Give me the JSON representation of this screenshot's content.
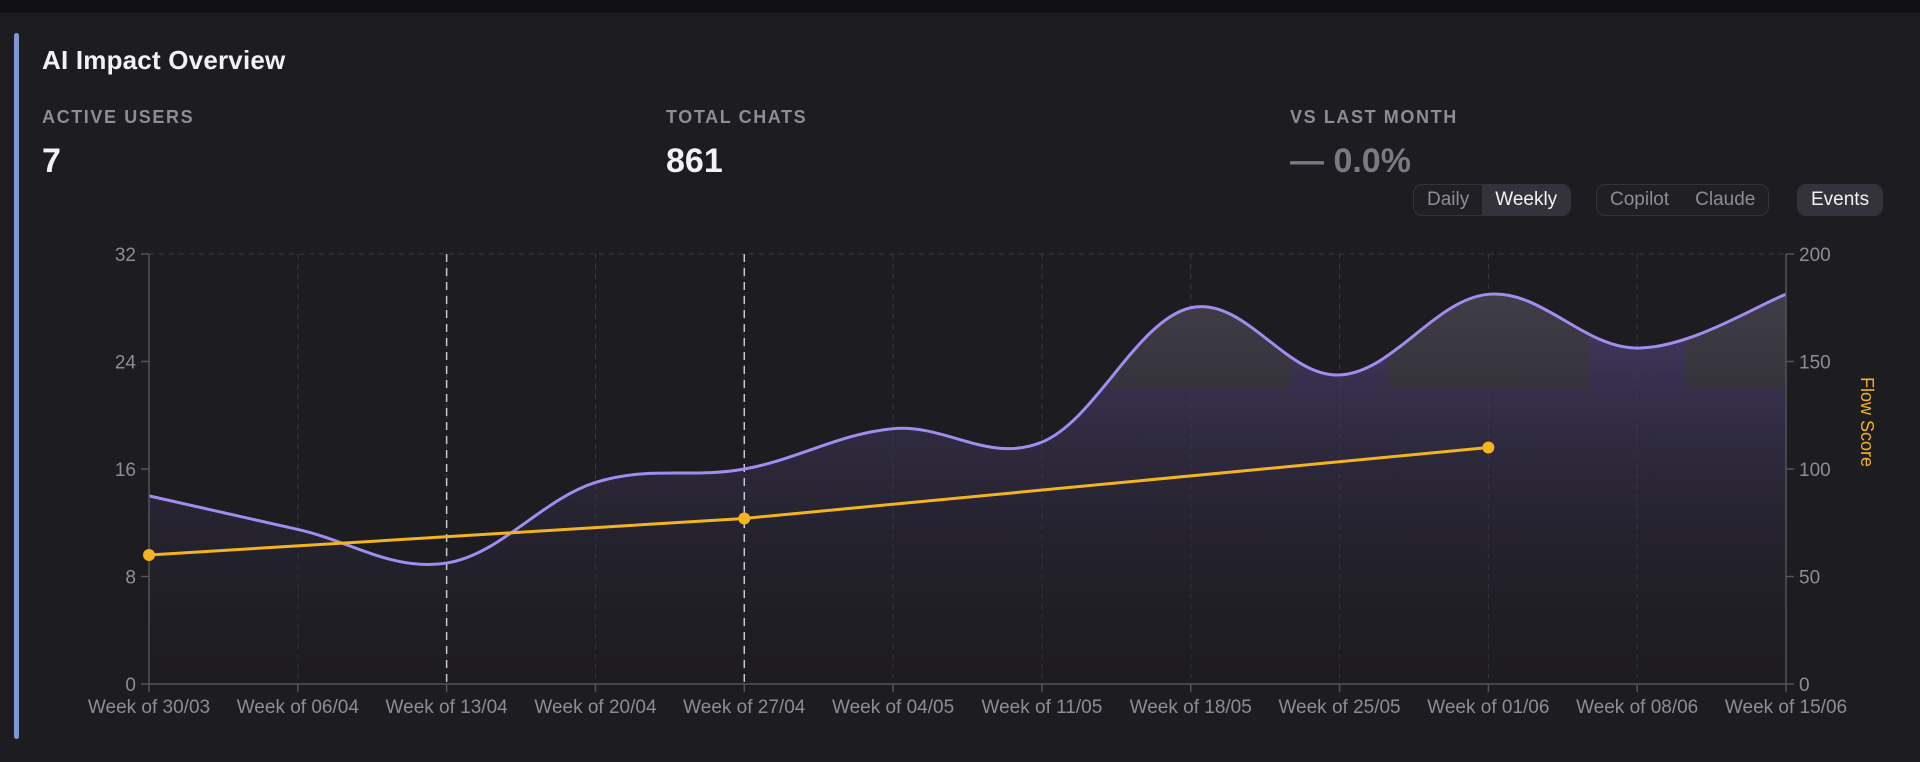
{
  "card": {
    "title": "AI Impact Overview"
  },
  "stats": [
    {
      "label": "ACTIVE USERS",
      "value": "7"
    },
    {
      "label": "TOTAL CHATS",
      "value": "861"
    },
    {
      "label": "VS LAST MONTH",
      "value": "— 0.0%"
    }
  ],
  "controls": {
    "granularity": [
      "Daily",
      "Weekly"
    ],
    "granularity_selected": "Weekly",
    "sources": [
      "Copilot",
      "Claude"
    ],
    "events_label": "Events",
    "events_active": true
  },
  "colors": {
    "accent": "#7f97d2",
    "chats_line": "#a18cf0",
    "flow_line": "#f2b41f",
    "background": "#1d1c20"
  },
  "chart_data": {
    "type": "line",
    "categories": [
      "Week of 30/03",
      "Week of 06/04",
      "Week of 13/04",
      "Week of 20/04",
      "Week of 27/04",
      "Week of 04/05",
      "Week of 11/05",
      "Week of 18/05",
      "Week of 25/05",
      "Week of 01/06",
      "Week of 08/06",
      "Week of 15/06"
    ],
    "series": [
      {
        "axis": "left",
        "fill": "area",
        "values": [
          14,
          11.5,
          9,
          15,
          16,
          19,
          18,
          28,
          23,
          29,
          25,
          29
        ]
      },
      {
        "name": "Flow Score",
        "axis": "right",
        "points": [
          {
            "x": "Week of 30/03",
            "y": 60
          },
          {
            "x": "Week of 27/04",
            "y": 77
          },
          {
            "x": "Week of 01/06",
            "y": 110
          }
        ]
      }
    ],
    "y_left": {
      "ticks": [
        0,
        8,
        16,
        24,
        32
      ],
      "range": [
        0,
        32
      ]
    },
    "y_right": {
      "ticks": [
        0,
        50,
        100,
        150,
        200
      ],
      "range": [
        0,
        200
      ],
      "label": "Flow Score"
    },
    "event_markers": [
      "Week of 13/04",
      "Week of 27/04"
    ],
    "highlight_bands": [
      "Week of 18/05",
      "Week of 01/06",
      "Week of 15/06"
    ],
    "grid": "dashed vertical"
  }
}
